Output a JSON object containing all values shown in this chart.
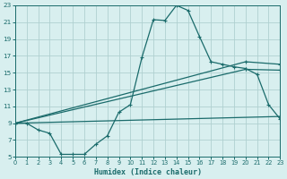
{
  "xlabel": "Humidex (Indice chaleur)",
  "background_color": "#d8efef",
  "grid_color": "#b0d0d0",
  "line_color": "#1a6b6b",
  "xlim": [
    0,
    23
  ],
  "ylim": [
    5,
    23
  ],
  "yticks": [
    5,
    7,
    9,
    11,
    13,
    15,
    17,
    19,
    21,
    23
  ],
  "xticks": [
    0,
    1,
    2,
    3,
    4,
    5,
    6,
    7,
    8,
    9,
    10,
    11,
    12,
    13,
    14,
    15,
    16,
    17,
    18,
    19,
    20,
    21,
    22,
    23
  ],
  "curve_x": [
    0,
    1,
    2,
    3,
    4,
    5,
    6,
    7,
    8,
    9,
    10,
    11,
    12,
    13,
    14,
    15,
    16,
    17,
    18,
    19,
    20,
    21,
    22,
    23
  ],
  "curve_y": [
    9,
    9,
    8.2,
    7.8,
    5.3,
    5.3,
    5.3,
    6.5,
    7.5,
    10.3,
    11.2,
    16.8,
    21.3,
    21.2,
    23.0,
    22.4,
    19.3,
    16.3,
    16.0,
    15.7,
    15.5,
    14.8,
    11.2,
    9.5
  ],
  "line1_x": [
    0,
    20,
    23
  ],
  "line1_y": [
    9,
    16.3,
    16.0
  ],
  "line2_x": [
    0,
    20,
    23
  ],
  "line2_y": [
    9,
    15.4,
    15.3
  ],
  "line3_x": [
    0,
    23
  ],
  "line3_y": [
    9,
    9.8
  ],
  "marker": "+"
}
